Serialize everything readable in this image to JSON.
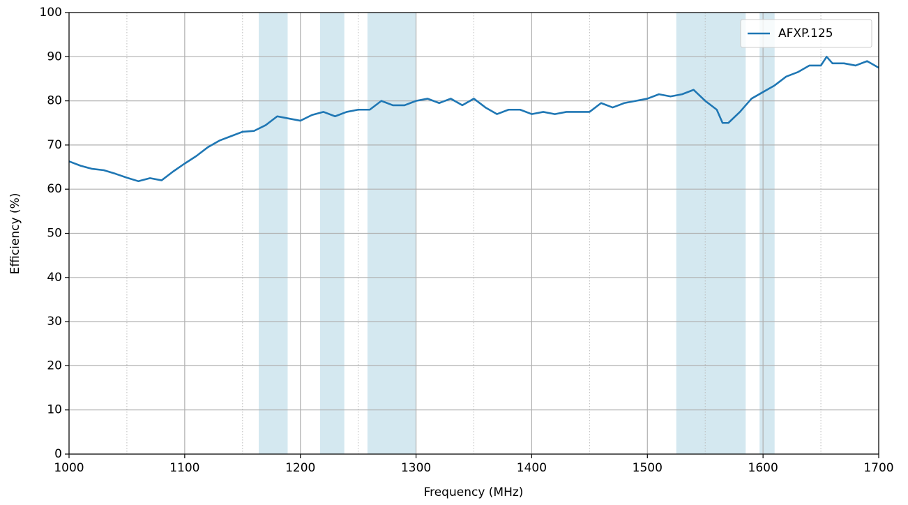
{
  "chart_data": {
    "type": "line",
    "xlabel": "Frequency (MHz)",
    "ylabel": "Efficiency (%)",
    "x": [
      1000,
      1010,
      1020,
      1030,
      1040,
      1050,
      1060,
      1070,
      1080,
      1090,
      1100,
      1110,
      1120,
      1130,
      1140,
      1150,
      1160,
      1170,
      1180,
      1190,
      1200,
      1210,
      1220,
      1230,
      1240,
      1250,
      1260,
      1270,
      1280,
      1290,
      1300,
      1310,
      1320,
      1330,
      1340,
      1350,
      1360,
      1370,
      1380,
      1390,
      1400,
      1410,
      1420,
      1430,
      1440,
      1450,
      1460,
      1470,
      1480,
      1490,
      1500,
      1510,
      1520,
      1530,
      1540,
      1550,
      1560,
      1565,
      1570,
      1580,
      1590,
      1600,
      1610,
      1620,
      1630,
      1640,
      1650,
      1655,
      1660,
      1670,
      1680,
      1690,
      1700
    ],
    "series": [
      {
        "name": "AFXP.125",
        "color": "#1f77b4",
        "values": [
          66.3,
          65.3,
          64.6,
          64.3,
          63.5,
          62.6,
          61.8,
          62.5,
          62,
          64,
          65.8,
          67.5,
          69.5,
          71,
          72,
          73,
          73.2,
          74.5,
          76.5,
          76,
          75.5,
          76.8,
          77.5,
          76.5,
          77.5,
          78,
          78,
          80,
          79,
          79,
          80,
          80.5,
          79.5,
          80.5,
          79,
          80.5,
          78.5,
          77,
          78,
          78,
          77,
          77.5,
          77,
          77.5,
          77.5,
          77.5,
          79.5,
          78.5,
          79.5,
          80,
          80.5,
          81.5,
          81,
          81.5,
          82.5,
          80,
          78,
          75,
          75,
          77.5,
          80.5,
          82,
          83.5,
          85.5,
          86.5,
          88,
          88,
          90,
          88.5,
          88.5,
          88,
          89,
          87.5
        ]
      }
    ],
    "shaded_bands": [
      [
        1164,
        1189
      ],
      [
        1217,
        1238
      ],
      [
        1258,
        1300
      ],
      [
        1525,
        1585
      ],
      [
        1597,
        1610
      ]
    ],
    "band_color": "#d4e8f0",
    "xlim": [
      1000,
      1700
    ],
    "xticks": [
      1000,
      1100,
      1200,
      1300,
      1400,
      1500,
      1600,
      1700
    ],
    "xminor_ticks": [
      1050,
      1150,
      1250,
      1350,
      1450,
      1550,
      1650
    ],
    "ylim": [
      0,
      100
    ],
    "yticks": [
      0,
      10,
      20,
      30,
      40,
      50,
      60,
      70,
      80,
      90,
      100
    ],
    "grid": true,
    "legend": "upper right"
  }
}
